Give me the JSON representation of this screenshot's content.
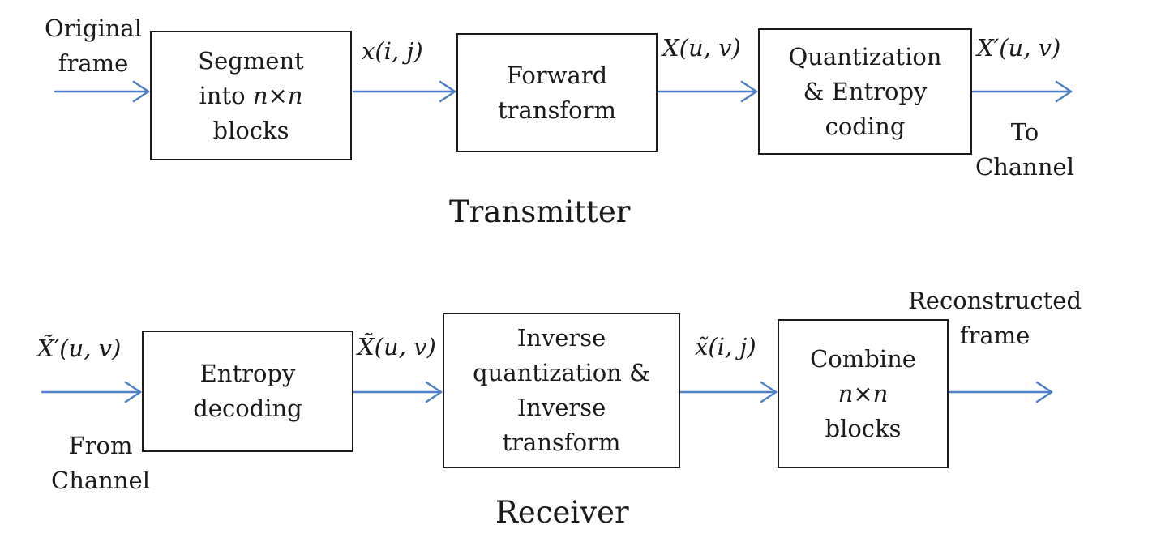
{
  "transmitter": {
    "title": "Transmitter",
    "input_label": [
      "Original",
      "frame"
    ],
    "blocks": [
      {
        "lines": [
          "Segment",
          "into n×n",
          "blocks"
        ]
      },
      {
        "lines": [
          "Forward",
          "transform"
        ]
      },
      {
        "lines": [
          "Quantization",
          "& Entropy",
          "coding"
        ]
      }
    ],
    "signals": [
      "x(i, j)",
      "X(u, v)",
      "X′(u, v)"
    ],
    "output_label": [
      "To",
      "Channel"
    ]
  },
  "receiver": {
    "title": "Receiver",
    "input_signal": "X̃′(u, v)",
    "input_label": [
      "From",
      "Channel"
    ],
    "blocks": [
      {
        "lines": [
          "Entropy",
          "decoding"
        ]
      },
      {
        "lines": [
          "Inverse",
          "quantization &",
          "Inverse",
          "transform"
        ]
      },
      {
        "lines": [
          "Combine",
          "n×n",
          "blocks"
        ]
      }
    ],
    "signals": [
      "X̃(u, v)",
      "x̃(i, j)"
    ],
    "output_label": [
      "Reconstructed",
      "frame"
    ]
  },
  "colors": {
    "arrow": "#4f7fc6",
    "border": "#1a1a1a"
  }
}
